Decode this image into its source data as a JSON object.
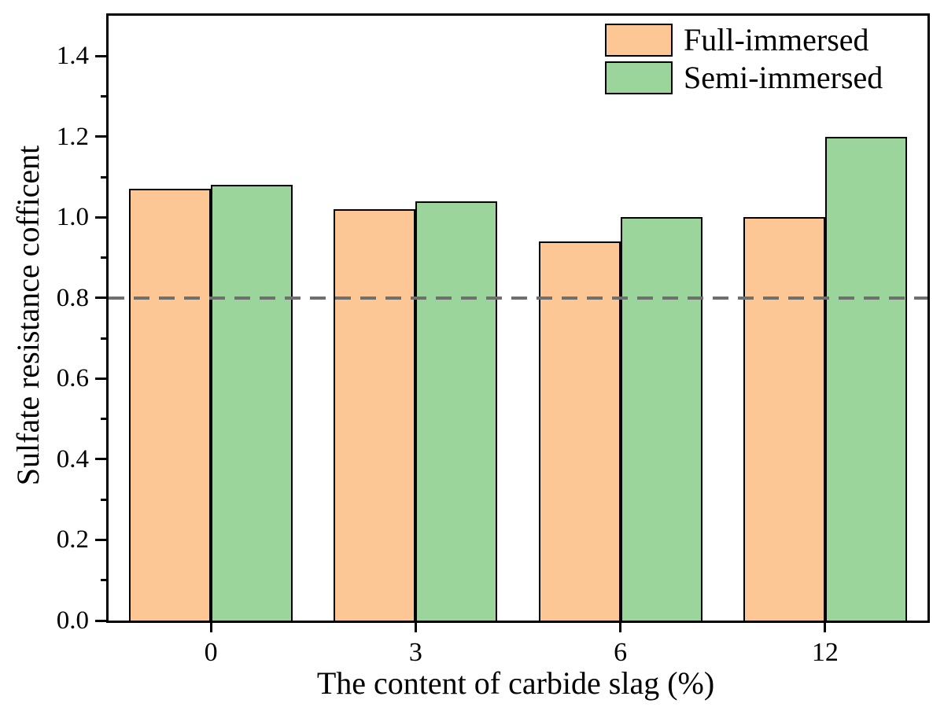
{
  "chart_data": {
    "type": "bar",
    "xlabel": "The content of carbide slag (%)",
    "ylabel": "Sulfate resistance cofficent",
    "categories": [
      "0",
      "3",
      "6",
      "12"
    ],
    "series": [
      {
        "name": "Full-immersed",
        "color": "#FCC795",
        "values": [
          1.07,
          1.02,
          0.94,
          1.0
        ]
      },
      {
        "name": "Semi-immersed",
        "color": "#9CD59B",
        "values": [
          1.08,
          1.04,
          1.0,
          1.2
        ]
      }
    ],
    "ylim": [
      0,
      1.5
    ],
    "ytick_labels": [
      "0.0",
      "0.2",
      "0.4",
      "0.6",
      "0.8",
      "1.0",
      "1.2",
      "1.4"
    ],
    "ytick_step": 0.2,
    "ytick_minor_step": 0.1,
    "reference_line": {
      "value": 0.8,
      "color": "#6f6f6f",
      "style": "dashed"
    },
    "bar_edge_color": "#000000",
    "axis_color": "#000000",
    "legend_position": "top-right",
    "grid": false
  }
}
